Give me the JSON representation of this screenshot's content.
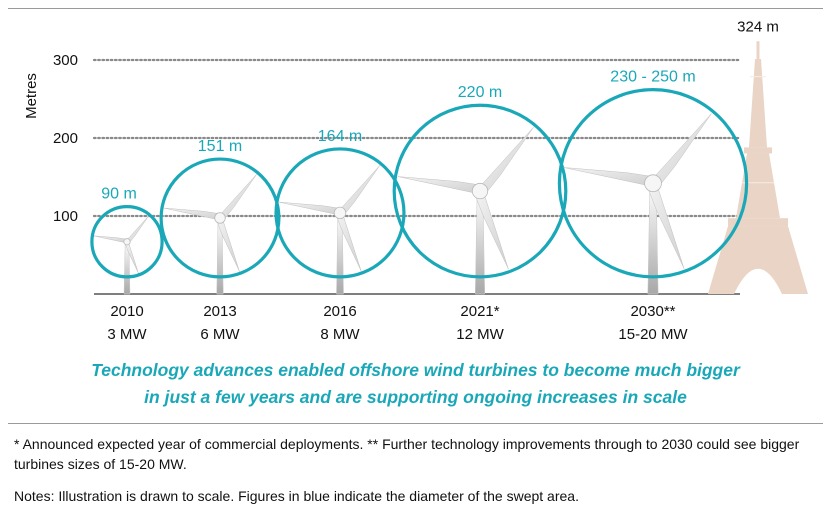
{
  "chart_data": {
    "type": "diagram",
    "ylabel": "Metres",
    "yticks": [
      100,
      200,
      300
    ],
    "ylim": [
      0,
      360
    ],
    "accent_color": "#1aa8b8",
    "tower_color": "#e9d4c6",
    "turbines": [
      {
        "year": "2010",
        "capacity": "3 MW",
        "diameter_label": "90 m",
        "diameter": 90
      },
      {
        "year": "2013",
        "capacity": "6 MW",
        "diameter_label": "151 m",
        "diameter": 151
      },
      {
        "year": "2016",
        "capacity": "8 MW",
        "diameter_label": "164 m",
        "diameter": 164
      },
      {
        "year": "2021*",
        "capacity": "12 MW",
        "diameter_label": "220 m",
        "diameter": 220
      },
      {
        "year": "2030**",
        "capacity": "15-20 MW",
        "diameter_label": "230 - 250 m",
        "diameter": 240
      }
    ],
    "tower": {
      "label": "324 m",
      "height": 324
    }
  },
  "tagline": {
    "line1": "Technology advances enabled offshore wind turbines to become much bigger",
    "line2": "in just a few years and are supporting ongoing increases in scale"
  },
  "footnotes": {
    "asterisk_note": "* Announced expected year of commercial deployments. ** Further technology improvements through to 2030 could see bigger turbines sizes of 15-20 MW.",
    "notes": "Notes: Illustration is drawn to scale. Figures in blue indicate the diameter of the swept area."
  }
}
